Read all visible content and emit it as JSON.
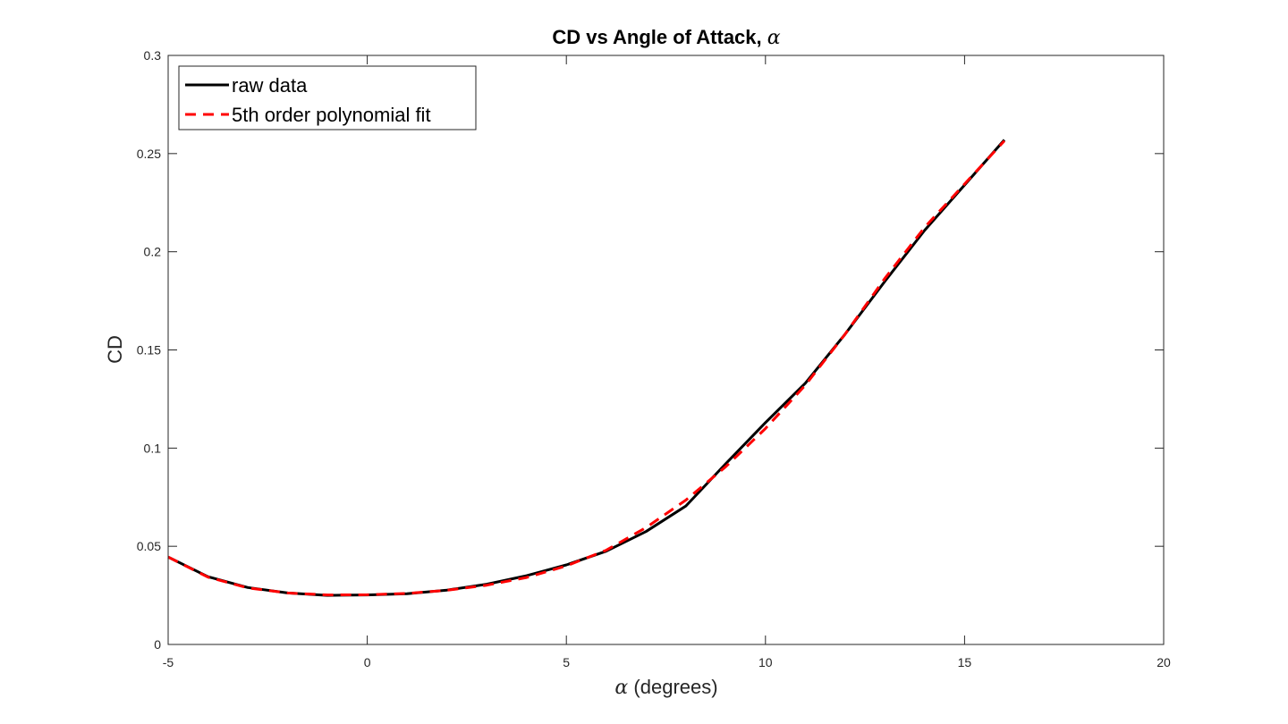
{
  "chart_data": {
    "type": "line",
    "title": "CD vs Angle of Attack, α",
    "title_main": "CD vs Angle of Attack,",
    "title_symbol": "α",
    "xlabel": "α (degrees)",
    "xlabel_symbol": "α",
    "xlabel_text": "(degrees)",
    "ylabel": "CD",
    "xlim": [
      -5,
      20
    ],
    "ylim": [
      0,
      0.3
    ],
    "xticks": [
      -5,
      0,
      5,
      10,
      15,
      20
    ],
    "xtick_labels": [
      "-5",
      "0",
      "5",
      "10",
      "15",
      "20"
    ],
    "yticks": [
      0,
      0.05,
      0.1,
      0.15,
      0.2,
      0.25,
      0.3
    ],
    "ytick_labels": [
      "0",
      "0.05",
      "0.1",
      "0.15",
      "0.2",
      "0.25",
      "0.3"
    ],
    "grid": false,
    "legend_position": "top-left",
    "series": [
      {
        "name": "raw data",
        "color": "#000000",
        "style": "solid",
        "x": [
          -5,
          -4,
          -3,
          -2,
          -1,
          0,
          1,
          2,
          3,
          4,
          5,
          6,
          7,
          8,
          9,
          10,
          11,
          12,
          13,
          14,
          15,
          16
        ],
        "y": [
          0.0445,
          0.0345,
          0.029,
          0.0262,
          0.025,
          0.0252,
          0.0258,
          0.0277,
          0.0307,
          0.035,
          0.0405,
          0.0475,
          0.0575,
          0.0705,
          0.092,
          0.113,
          0.133,
          0.158,
          0.185,
          0.211,
          0.234,
          0.257
        ]
      },
      {
        "name": "5th order polynomial fit",
        "color": "#ff0000",
        "style": "dashed",
        "x": [
          -5,
          -4,
          -3,
          -2,
          -1,
          0,
          1,
          2,
          3,
          4,
          5,
          6,
          7,
          8,
          9,
          10,
          11,
          12,
          13,
          14,
          15,
          16
        ],
        "y": [
          0.0445,
          0.0343,
          0.0288,
          0.0262,
          0.0252,
          0.0253,
          0.026,
          0.0276,
          0.0302,
          0.0341,
          0.04,
          0.048,
          0.0595,
          0.0735,
          0.0905,
          0.11,
          0.132,
          0.158,
          0.1865,
          0.2125,
          0.2345,
          0.2565
        ]
      }
    ]
  }
}
